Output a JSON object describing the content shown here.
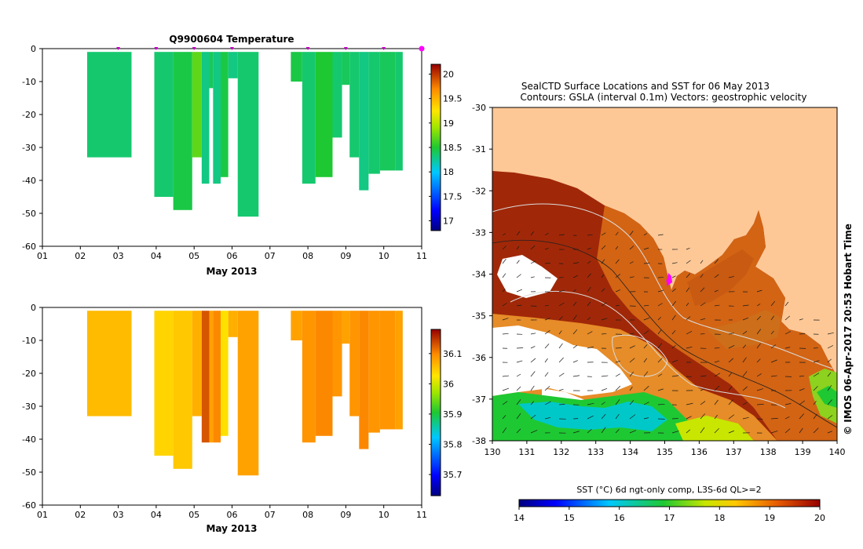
{
  "chart_data": [
    {
      "type": "heatmap",
      "title": "Q9900604  Temperature",
      "xlabel": "May 2013",
      "ylabel": "",
      "x_ticks": [
        "01",
        "02",
        "03",
        "04",
        "05",
        "06",
        "07",
        "08",
        "09",
        "10",
        "11"
      ],
      "xlim": [
        1,
        11
      ],
      "y_ticks": [
        "0",
        "-10",
        "-20",
        "-30",
        "-40",
        "-50",
        "-60"
      ],
      "ylim": [
        -60,
        0
      ],
      "colorbar": {
        "ticks": [
          "17",
          "17.5",
          "18",
          "18.5",
          "19",
          "19.5",
          "20"
        ],
        "range": [
          16.8,
          20.2
        ]
      },
      "profiles": [
        {
          "x0": 2.18,
          "x1": 3.35,
          "depth": 33,
          "value": 18.35
        },
        {
          "x0": 3.95,
          "x1": 4.45,
          "depth": 45,
          "value": 18.35
        },
        {
          "x0": 4.45,
          "x1": 4.95,
          "depth": 49,
          "value": 18.45
        },
        {
          "x0": 4.95,
          "x1": 5.2,
          "depth": 33,
          "value": 18.7
        },
        {
          "x0": 5.2,
          "x1": 5.4,
          "depth": 41,
          "value": 18.3
        },
        {
          "x0": 5.4,
          "x1": 5.5,
          "depth": 12,
          "value": 18.4
        },
        {
          "x0": 5.5,
          "x1": 5.7,
          "depth": 41,
          "value": 18.3
        },
        {
          "x0": 5.7,
          "x1": 5.9,
          "depth": 39,
          "value": 18.45
        },
        {
          "x0": 5.9,
          "x1": 6.15,
          "depth": 9,
          "value": 18.3
        },
        {
          "x0": 6.15,
          "x1": 6.7,
          "depth": 51,
          "value": 18.35
        },
        {
          "x0": 7.55,
          "x1": 7.85,
          "depth": 10,
          "value": 18.45
        },
        {
          "x0": 7.85,
          "x1": 8.2,
          "depth": 41,
          "value": 18.35
        },
        {
          "x0": 8.2,
          "x1": 8.65,
          "depth": 39,
          "value": 18.5
        },
        {
          "x0": 8.65,
          "x1": 8.9,
          "depth": 27,
          "value": 18.35
        },
        {
          "x0": 8.9,
          "x1": 9.1,
          "depth": 11,
          "value": 18.4
        },
        {
          "x0": 9.1,
          "x1": 9.35,
          "depth": 33,
          "value": 18.35
        },
        {
          "x0": 9.35,
          "x1": 9.6,
          "depth": 43,
          "value": 18.3
        },
        {
          "x0": 9.6,
          "x1": 9.9,
          "depth": 38,
          "value": 18.35
        },
        {
          "x0": 9.9,
          "x1": 10.3,
          "depth": 37,
          "value": 18.4
        },
        {
          "x0": 10.3,
          "x1": 10.5,
          "depth": 37,
          "value": 18.35
        }
      ],
      "marker_dates": [
        3,
        4,
        5,
        6,
        8,
        9,
        10,
        11
      ]
    },
    {
      "type": "heatmap",
      "title": "",
      "xlabel": "May 2013",
      "ylabel": "",
      "x_ticks": [
        "01",
        "02",
        "03",
        "04",
        "05",
        "06",
        "07",
        "08",
        "09",
        "10",
        "11"
      ],
      "xlim": [
        1,
        11
      ],
      "y_ticks": [
        "0",
        "-10",
        "-20",
        "-30",
        "-40",
        "-50",
        "-60"
      ],
      "ylim": [
        -60,
        0
      ],
      "colorbar": {
        "ticks": [
          "35.7",
          "35.8",
          "35.9",
          "36",
          "36.1"
        ],
        "range": [
          35.63,
          36.18
        ]
      },
      "profiles": [
        {
          "x0": 2.18,
          "x1": 3.35,
          "depth": 33,
          "value": 36.06
        },
        {
          "x0": 3.95,
          "x1": 4.45,
          "depth": 45,
          "value": 36.04
        },
        {
          "x0": 4.45,
          "x1": 4.95,
          "depth": 49,
          "value": 36.05
        },
        {
          "x0": 4.95,
          "x1": 5.2,
          "depth": 33,
          "value": 36.07
        },
        {
          "x0": 5.2,
          "x1": 5.4,
          "depth": 41,
          "value": 36.13
        },
        {
          "x0": 5.4,
          "x1": 5.5,
          "depth": 41,
          "value": 36.08
        },
        {
          "x0": 5.5,
          "x1": 5.7,
          "depth": 41,
          "value": 36.1
        },
        {
          "x0": 5.7,
          "x1": 5.9,
          "depth": 39,
          "value": 36.03
        },
        {
          "x0": 5.9,
          "x1": 6.15,
          "depth": 9,
          "value": 36.07
        },
        {
          "x0": 6.15,
          "x1": 6.7,
          "depth": 51,
          "value": 36.08
        },
        {
          "x0": 7.55,
          "x1": 7.85,
          "depth": 10,
          "value": 36.08
        },
        {
          "x0": 7.85,
          "x1": 8.2,
          "depth": 41,
          "value": 36.09
        },
        {
          "x0": 8.2,
          "x1": 8.65,
          "depth": 39,
          "value": 36.1
        },
        {
          "x0": 8.65,
          "x1": 8.9,
          "depth": 27,
          "value": 36.09
        },
        {
          "x0": 8.9,
          "x1": 9.1,
          "depth": 11,
          "value": 36.08
        },
        {
          "x0": 9.1,
          "x1": 9.35,
          "depth": 33,
          "value": 36.09
        },
        {
          "x0": 9.35,
          "x1": 9.6,
          "depth": 43,
          "value": 36.1
        },
        {
          "x0": 9.6,
          "x1": 9.9,
          "depth": 38,
          "value": 36.09
        },
        {
          "x0": 9.9,
          "x1": 10.3,
          "depth": 37,
          "value": 36.09
        },
        {
          "x0": 10.3,
          "x1": 10.5,
          "depth": 37,
          "value": 36.08
        }
      ]
    },
    {
      "type": "heatmap",
      "title": "SealCTD Surface Locations and SST for 06 May 2013",
      "subtitle": "Contours: GSLA (interval 0.1m) Vectors: geostrophic velocity",
      "xlabel": "",
      "ylabel": "",
      "x_ticks": [
        "130",
        "131",
        "132",
        "133",
        "134",
        "135",
        "136",
        "137",
        "138",
        "139",
        "140"
      ],
      "xlim": [
        130,
        140
      ],
      "y_ticks": [
        "-30",
        "-31",
        "-32",
        "-33",
        "-34",
        "-35",
        "-36",
        "-37",
        "-38"
      ],
      "ylim": [
        -38,
        -30
      ],
      "colorbar": {
        "label": "SST (°C) 6d ngt-only comp, L3S-6d QL>=2",
        "ticks": [
          "14",
          "15",
          "16",
          "17",
          "18",
          "19",
          "20"
        ],
        "range": [
          14,
          20
        ]
      },
      "seal_location": {
        "lon": 135.1,
        "lat": -34.2
      },
      "side_text": "© IMOS 06-Apr-2017 20:53 Hobart Time"
    }
  ]
}
